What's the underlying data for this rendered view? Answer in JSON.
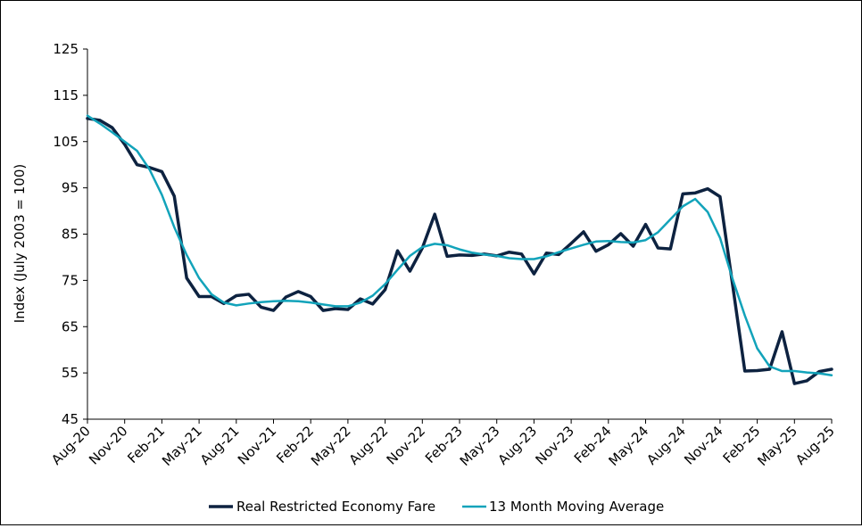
{
  "chart_data": {
    "type": "line",
    "title": "",
    "xlabel": "",
    "ylabel": "Index (July 2003 = 100)",
    "ylim": [
      45,
      125
    ],
    "yticks": [
      45,
      55,
      65,
      75,
      85,
      95,
      105,
      115,
      125
    ],
    "x_tick_labels": [
      "Aug-20",
      "Nov-20",
      "Feb-21",
      "May-21",
      "Aug-21",
      "Nov-21",
      "Feb-22",
      "May-22",
      "Aug-22",
      "Nov-22",
      "Feb-23",
      "May-23",
      "Aug-23",
      "Nov-23",
      "Feb-24",
      "May-24",
      "Aug-24",
      "Nov-24",
      "Feb-25",
      "May-25",
      "Aug-25"
    ],
    "legend_position": "bottom",
    "grid": false,
    "series": [
      {
        "name": "Real Restricted Economy Fare",
        "color": "#0d2240",
        "values": [
          110.0,
          109.6,
          108.0,
          104.4,
          100.0,
          99.4,
          98.5,
          93.2,
          75.5,
          71.5,
          71.5,
          70.0,
          71.7,
          72.0,
          69.2,
          68.5,
          71.4,
          72.6,
          71.5,
          68.5,
          68.9,
          68.7,
          71.0,
          69.9,
          73.0,
          81.4,
          77.0,
          82.0,
          89.3,
          80.2,
          80.5,
          80.4,
          80.7,
          80.3,
          81.1,
          80.7,
          76.4,
          80.9,
          80.6,
          83.0,
          85.5,
          81.3,
          82.7,
          85.1,
          82.4,
          87.1,
          82.0,
          81.8,
          93.7,
          93.9,
          94.8,
          93.1,
          74.3,
          55.4,
          55.5,
          55.8,
          63.9,
          52.7,
          53.3,
          55.3,
          55.8
        ]
      },
      {
        "name": "13 Month Moving Average",
        "color": "#12a3ba",
        "values": [
          110.6,
          108.9,
          107.0,
          105.0,
          103.0,
          99.0,
          93.5,
          86.5,
          80.5,
          75.5,
          72.0,
          70.2,
          69.6,
          70.0,
          70.3,
          70.5,
          70.6,
          70.5,
          70.2,
          69.8,
          69.4,
          69.4,
          70.2,
          71.7,
          74.2,
          77.3,
          80.3,
          82.2,
          82.9,
          82.6,
          81.7,
          81.0,
          80.6,
          80.3,
          79.8,
          79.6,
          79.6,
          80.2,
          81.1,
          81.9,
          82.7,
          83.4,
          83.5,
          83.3,
          83.2,
          83.7,
          85.4,
          88.2,
          91.0,
          92.6,
          89.8,
          84.2,
          75.4,
          67.4,
          60.3,
          56.4,
          55.4,
          55.4,
          55.1,
          54.9,
          54.5
        ]
      }
    ]
  }
}
